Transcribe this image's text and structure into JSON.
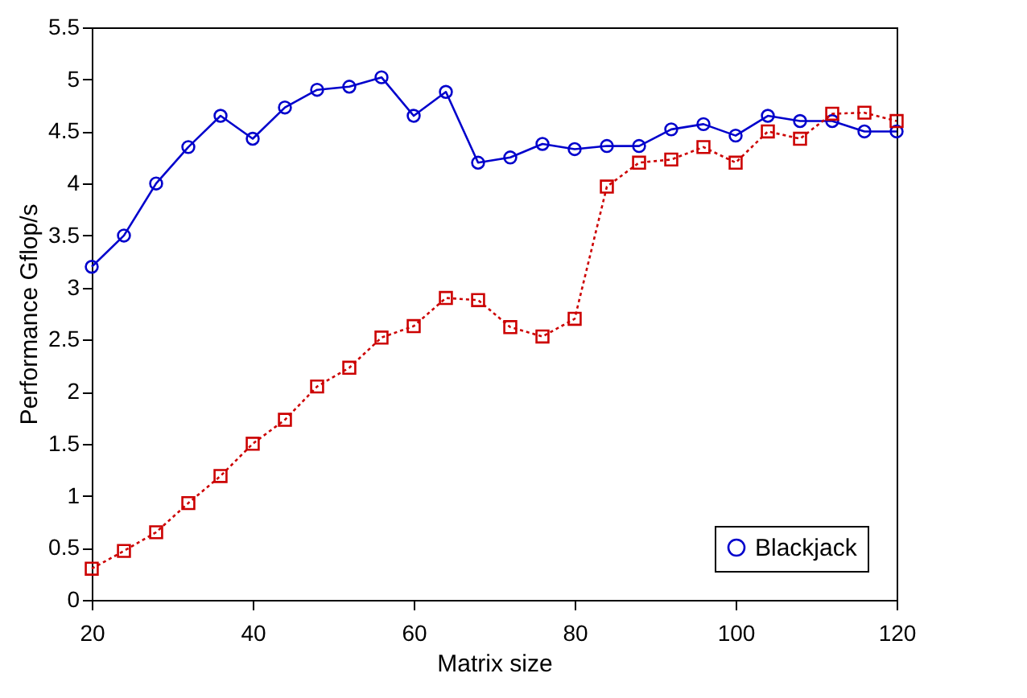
{
  "chart_data": {
    "type": "line",
    "xlabel": "Matrix size",
    "ylabel": "Performance Gflop/s",
    "x": [
      20,
      24,
      28,
      32,
      36,
      40,
      44,
      48,
      52,
      56,
      60,
      64,
      68,
      72,
      76,
      80,
      84,
      88,
      92,
      96,
      100,
      104,
      108,
      112,
      116,
      120
    ],
    "series": [
      {
        "name": "Blackjack",
        "color": "#0000cc",
        "marker": "circle",
        "line_style": "solid",
        "values": [
          3.2,
          3.5,
          4.0,
          4.35,
          4.65,
          4.43,
          4.73,
          4.9,
          4.93,
          5.02,
          4.65,
          4.88,
          4.2,
          4.25,
          4.38,
          4.33,
          4.36,
          4.36,
          4.52,
          4.57,
          4.46,
          4.65,
          4.6,
          4.6,
          4.5,
          4.5
        ]
      },
      {
        "color": "#cc0000",
        "marker": "square",
        "line_style": "dotted",
        "values": [
          0.3,
          0.47,
          0.65,
          0.93,
          1.19,
          1.5,
          1.73,
          2.05,
          2.23,
          2.52,
          2.63,
          2.9,
          2.88,
          2.62,
          2.53,
          2.7,
          3.97,
          4.2,
          4.23,
          4.35,
          4.2,
          4.5,
          4.43,
          4.67,
          4.68,
          4.6
        ]
      }
    ],
    "xlim": [
      20,
      120
    ],
    "xticks": [
      20,
      40,
      60,
      80,
      100,
      120
    ],
    "ylim": [
      0,
      5.5
    ],
    "yticks": [
      0,
      0.5,
      1,
      1.5,
      2,
      2.5,
      3,
      3.5,
      4,
      4.5,
      5,
      5.5
    ],
    "grid": false,
    "legend": "bottom right"
  }
}
